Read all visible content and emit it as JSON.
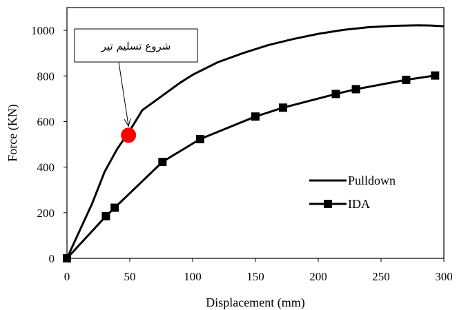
{
  "chart_data": {
    "type": "line",
    "xlabel": "Displacement (mm)",
    "ylabel": "Force (KN)",
    "xlim": [
      0,
      300
    ],
    "ylim": [
      0,
      1100
    ],
    "xticks": [
      0,
      50,
      100,
      150,
      200,
      250,
      300
    ],
    "yticks": [
      0,
      200,
      400,
      600,
      800,
      1000
    ],
    "xtick_labels": [
      "0",
      "50",
      "100",
      "150",
      "200",
      "250",
      "300"
    ],
    "ytick_labels": [
      "0",
      "200",
      "400",
      "600",
      "800",
      "1000"
    ],
    "grid": false,
    "legend_position": "lower-right",
    "series": [
      {
        "name": "Pulldown",
        "marker": "none",
        "color": "#000000",
        "x": [
          0,
          10,
          20,
          30,
          40,
          50,
          60,
          70,
          80,
          90,
          100,
          120,
          140,
          160,
          180,
          200,
          220,
          240,
          260,
          280,
          290,
          300
        ],
        "y": [
          0,
          120,
          240,
          380,
          480,
          560,
          650,
          690,
          730,
          770,
          805,
          860,
          900,
          935,
          962,
          985,
          1002,
          1014,
          1020,
          1022,
          1021,
          1018
        ]
      },
      {
        "name": "IDA",
        "marker": "square",
        "color": "#000000",
        "x": [
          0,
          31,
          38,
          76,
          106,
          150,
          172,
          214,
          230,
          270,
          293
        ],
        "y": [
          0,
          185,
          222,
          423,
          523,
          622,
          661,
          721,
          742,
          783,
          802
        ],
        "marked_indices": [
          0,
          1,
          2,
          3,
          4,
          5,
          6,
          7,
          8,
          9,
          10
        ]
      }
    ],
    "highlight_point": {
      "x": 49,
      "y": 540,
      "color": "#ff0000"
    },
    "annotation": {
      "text": "شروع تسلیم تیر",
      "target_x": 49,
      "target_y": 540
    }
  }
}
